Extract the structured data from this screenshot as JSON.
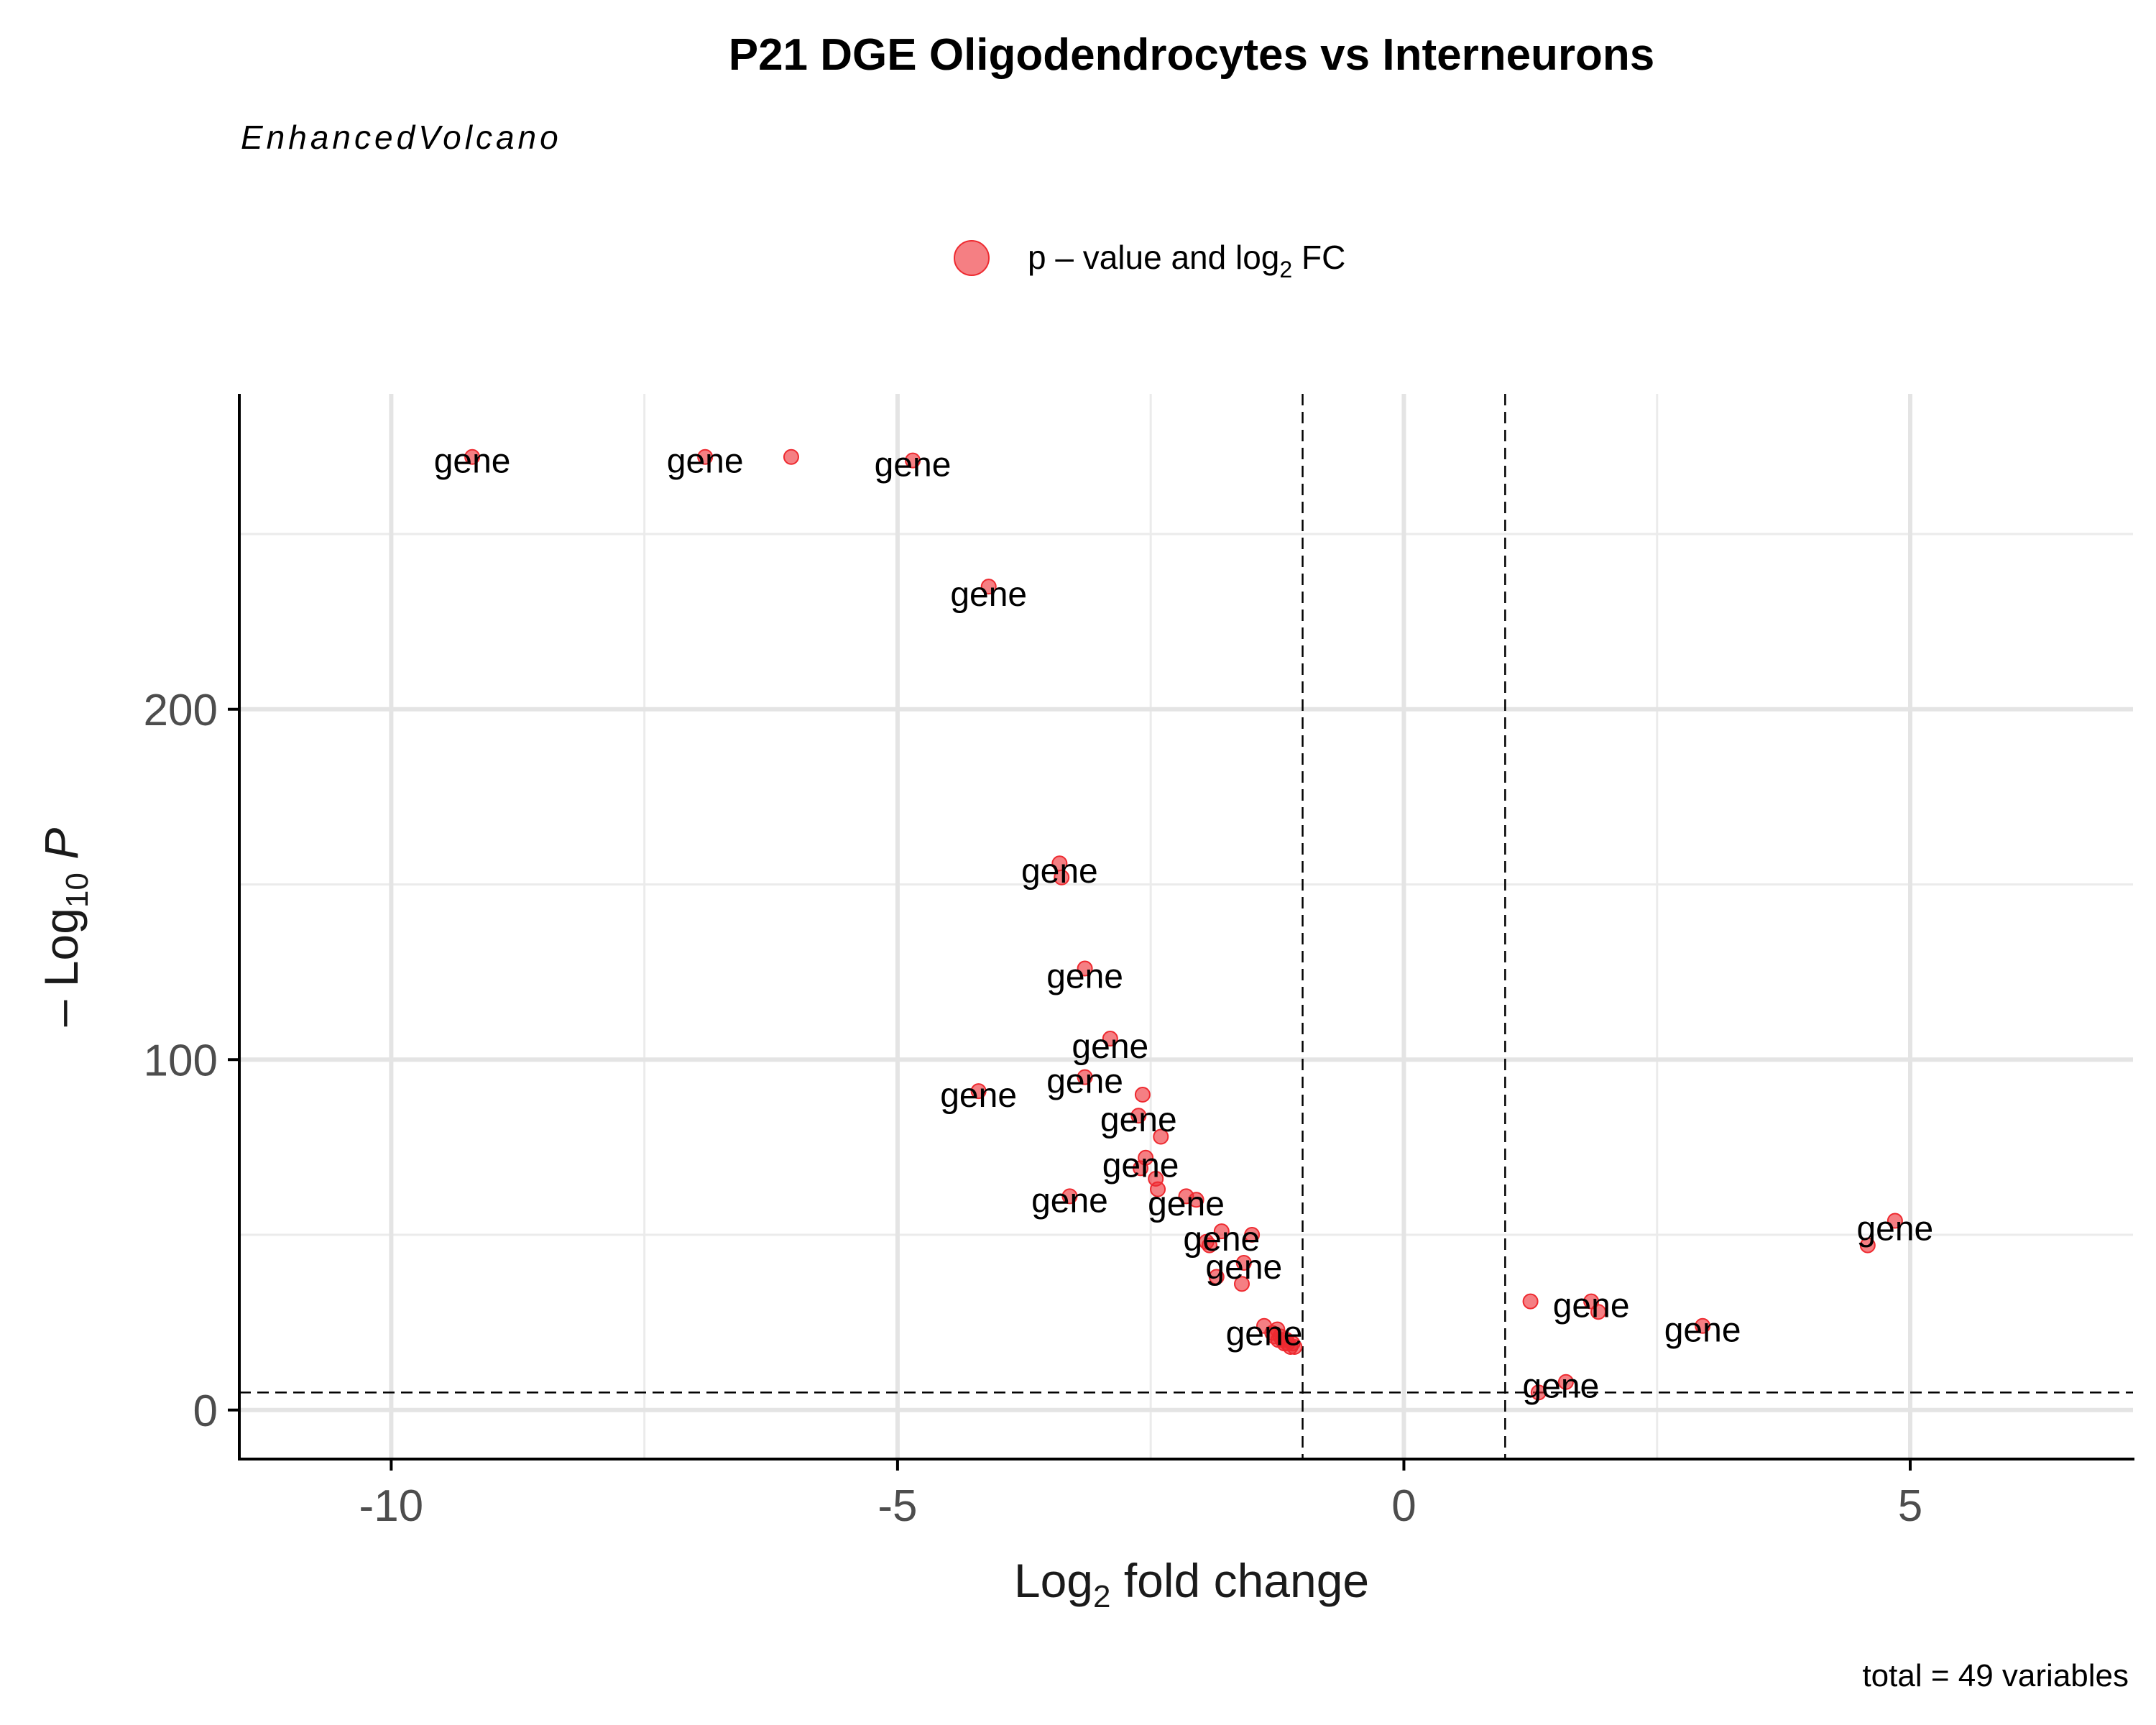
{
  "chart_data": {
    "type": "scatter",
    "title": "P21 DGE Oligodendrocytes vs Interneurons",
    "subtitle": "EnhancedVolcano",
    "legend": {
      "position": "top",
      "series_color": "#ee2a30",
      "label_parts": {
        "prefix": "p – value and log",
        "sub": "2",
        "suffix": " FC"
      }
    },
    "xlabel_parts": {
      "prefix": "Log",
      "sub": "2",
      "suffix": " fold change"
    },
    "ylabel_parts": {
      "prefix": "– Log",
      "sub": "10",
      "suffix": " P"
    },
    "xlim": [
      -11.5,
      7.2
    ],
    "ylim": [
      -14,
      290
    ],
    "x_ticks": [
      -10,
      -5,
      0,
      5
    ],
    "x_tick_labels": [
      "-10",
      "-5",
      "0",
      "5"
    ],
    "y_ticks": [
      0,
      100,
      200
    ],
    "y_tick_labels": [
      "0",
      "100",
      "200"
    ],
    "grid": true,
    "cutoffs": {
      "fold_change": [
        -1,
        1
      ],
      "neg_log10_p": 5
    },
    "caption": "total = 49 variables",
    "points": [
      {
        "x": -9.2,
        "y": 272
      },
      {
        "x": -6.9,
        "y": 272
      },
      {
        "x": -6.05,
        "y": 272
      },
      {
        "x": -4.85,
        "y": 271
      },
      {
        "x": -4.1,
        "y": 235
      },
      {
        "x": -3.4,
        "y": 156
      },
      {
        "x": -3.38,
        "y": 152
      },
      {
        "x": -3.15,
        "y": 126
      },
      {
        "x": -2.9,
        "y": 106
      },
      {
        "x": -4.2,
        "y": 91
      },
      {
        "x": -3.15,
        "y": 95
      },
      {
        "x": -2.58,
        "y": 90
      },
      {
        "x": -2.62,
        "y": 84
      },
      {
        "x": -2.4,
        "y": 78
      },
      {
        "x": -2.55,
        "y": 72
      },
      {
        "x": -2.6,
        "y": 69
      },
      {
        "x": -2.45,
        "y": 66
      },
      {
        "x": -2.43,
        "y": 63
      },
      {
        "x": -3.3,
        "y": 61
      },
      {
        "x": -2.15,
        "y": 61
      },
      {
        "x": -2.05,
        "y": 60
      },
      {
        "x": -1.8,
        "y": 51
      },
      {
        "x": -1.5,
        "y": 50
      },
      {
        "x": -1.95,
        "y": 48
      },
      {
        "x": -1.92,
        "y": 47
      },
      {
        "x": -1.58,
        "y": 42
      },
      {
        "x": -1.85,
        "y": 38
      },
      {
        "x": -1.6,
        "y": 36
      },
      {
        "x": -1.38,
        "y": 24
      },
      {
        "x": -1.25,
        "y": 23
      },
      {
        "x": -1.3,
        "y": 22
      },
      {
        "x": -1.2,
        "y": 20
      },
      {
        "x": -1.18,
        "y": 19
      },
      {
        "x": -1.12,
        "y": 18
      },
      {
        "x": -1.08,
        "y": 18
      },
      {
        "x": -1.22,
        "y": 21
      },
      {
        "x": -1.15,
        "y": 19
      },
      {
        "x": 1.25,
        "y": 31
      },
      {
        "x": 1.85,
        "y": 31
      },
      {
        "x": 1.92,
        "y": 28
      },
      {
        "x": 2.95,
        "y": 24
      },
      {
        "x": 4.58,
        "y": 47
      },
      {
        "x": 4.85,
        "y": 54
      },
      {
        "x": 1.6,
        "y": 8
      },
      {
        "x": 1.33,
        "y": 5
      },
      {
        "x": -1.28,
        "y": 21
      },
      {
        "x": -1.24,
        "y": 20
      },
      {
        "x": -1.16,
        "y": 20
      },
      {
        "x": -1.1,
        "y": 19
      }
    ],
    "labels": [
      {
        "text": "gene",
        "x": -9.2,
        "y": 271
      },
      {
        "text": "gene",
        "x": -6.9,
        "y": 271
      },
      {
        "text": "gene",
        "x": -4.85,
        "y": 270
      },
      {
        "text": "gene",
        "x": -4.1,
        "y": 233
      },
      {
        "text": "gene",
        "x": -3.4,
        "y": 154
      },
      {
        "text": "gene",
        "x": -3.15,
        "y": 124
      },
      {
        "text": "gene",
        "x": -2.9,
        "y": 104
      },
      {
        "text": "gene",
        "x": -4.2,
        "y": 90
      },
      {
        "text": "gene",
        "x": -3.15,
        "y": 94
      },
      {
        "text": "gene",
        "x": -2.62,
        "y": 83
      },
      {
        "text": "gene",
        "x": -2.6,
        "y": 70
      },
      {
        "text": "gene",
        "x": -3.3,
        "y": 60
      },
      {
        "text": "gene",
        "x": -2.15,
        "y": 59
      },
      {
        "text": "gene",
        "x": -1.8,
        "y": 49
      },
      {
        "text": "gene",
        "x": -1.58,
        "y": 41
      },
      {
        "text": "gene",
        "x": -1.38,
        "y": 22
      },
      {
        "text": "gene",
        "x": 1.85,
        "y": 30
      },
      {
        "text": "gene",
        "x": 2.95,
        "y": 23
      },
      {
        "text": "gene",
        "x": 4.85,
        "y": 52
      },
      {
        "text": "gene",
        "x": 1.55,
        "y": 7
      }
    ]
  }
}
